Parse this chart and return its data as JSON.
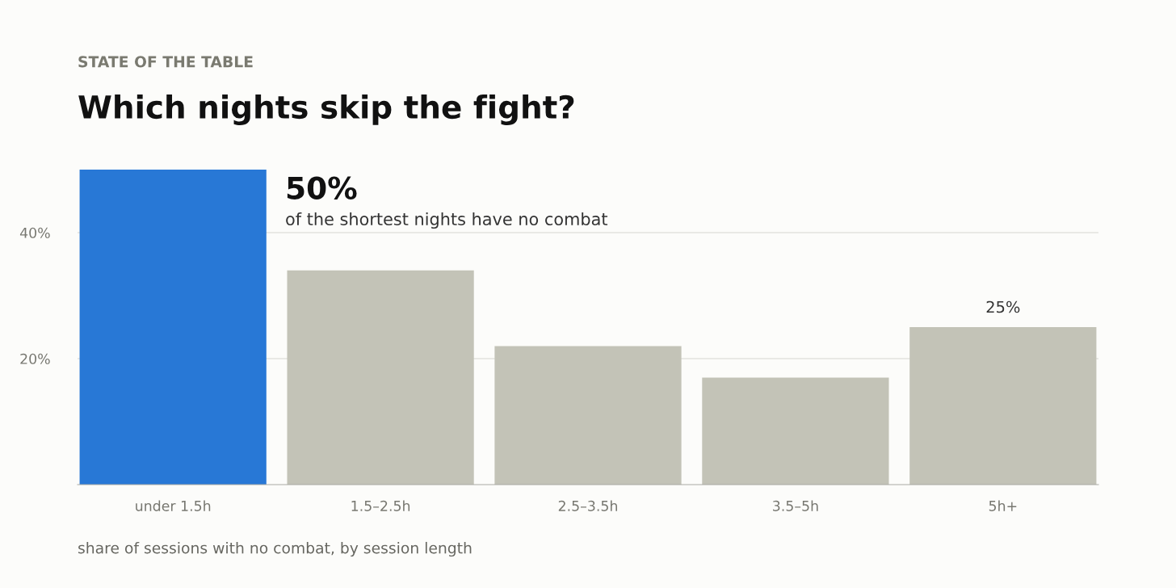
{
  "chart_data": {
    "type": "bar",
    "subtitle": "STATE OF THE TABLE",
    "title": "Which nights skip the fight?",
    "categories": [
      "under 1.5h",
      "1.5–2.5h",
      "2.5–3.5h",
      "3.5–5h",
      "5h+"
    ],
    "values": [
      50,
      34,
      22,
      17,
      25
    ],
    "colors": [
      "#2878d6",
      "#c3c3b7",
      "#c3c3b7",
      "#c3c3b7",
      "#c3c3b7"
    ],
    "value_labels": [
      null,
      null,
      null,
      null,
      "25%"
    ],
    "ylim": [
      0,
      50
    ],
    "yticks": [
      {
        "value": 20,
        "label": "20%"
      },
      {
        "value": 40,
        "label": "40%"
      }
    ],
    "grid": "y",
    "annotations": [
      "50%",
      "of the shortest nights have no combat",
      "share of sessions with no combat, by session length"
    ]
  }
}
